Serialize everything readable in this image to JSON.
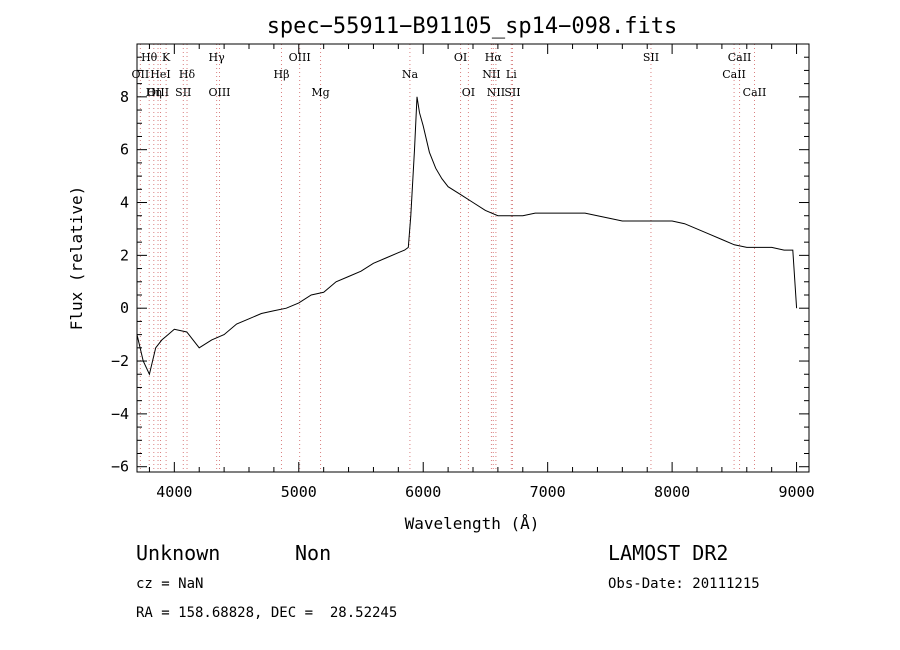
{
  "chart_data": {
    "type": "line",
    "title": "spec−55911−B91105_sp14−098.fits",
    "xlabel": "Wavelength (Å)",
    "ylabel": "Flux (relative)",
    "xlim": [
      3700,
      9100
    ],
    "ylim": [
      -6.2,
      10.0
    ],
    "x_ticks": [
      4000,
      5000,
      6000,
      7000,
      8000,
      9000
    ],
    "y_ticks": [
      -6,
      -4,
      -2,
      0,
      2,
      4,
      6,
      8
    ],
    "y_tick_labels": [
      "−6",
      "−4",
      "−2",
      "0",
      "2",
      "4",
      "6",
      "8"
    ],
    "grid": false,
    "line_color": "#000000",
    "marker_line_color": "#d98080",
    "series": [
      {
        "x": [
          3700,
          3750,
          3800,
          3850,
          3900,
          3950,
          4000,
          4100,
          4200,
          4300,
          4400,
          4500,
          4600,
          4700,
          4800,
          4900,
          5000,
          5100,
          5200,
          5300,
          5400,
          5500,
          5600,
          5700,
          5800,
          5850,
          5880,
          5900,
          5930,
          5950,
          5970,
          6000,
          6050,
          6100,
          6150,
          6200,
          6300,
          6400,
          6500,
          6600,
          6700,
          6800,
          6900,
          7000,
          7100,
          7200,
          7300,
          7400,
          7500,
          7600,
          7700,
          7800,
          7900,
          8000,
          8100,
          8200,
          8300,
          8400,
          8500,
          8600,
          8700,
          8800,
          8900,
          8970,
          9000
        ],
        "y": [
          -1.0,
          -2.0,
          -2.5,
          -1.5,
          -1.2,
          -1.0,
          -0.8,
          -0.9,
          -1.5,
          -1.2,
          -1.0,
          -0.6,
          -0.4,
          -0.2,
          -0.1,
          0.0,
          0.2,
          0.5,
          0.6,
          1.0,
          1.2,
          1.4,
          1.7,
          1.9,
          2.1,
          2.2,
          2.3,
          3.5,
          6.0,
          8.0,
          7.4,
          6.9,
          5.9,
          5.3,
          4.9,
          4.6,
          4.3,
          4.0,
          3.7,
          3.5,
          3.5,
          3.5,
          3.6,
          3.6,
          3.6,
          3.6,
          3.6,
          3.5,
          3.4,
          3.3,
          3.3,
          3.3,
          3.3,
          3.3,
          3.2,
          3.0,
          2.8,
          2.6,
          2.4,
          2.3,
          2.3,
          2.3,
          2.2,
          2.2,
          0.0
        ]
      }
    ],
    "line_markers": [
      {
        "name": "Hθ",
        "wavelength": 3798,
        "row": 0
      },
      {
        "name": "OII",
        "wavelength": 3727,
        "row": 1
      },
      {
        "name": "Hη",
        "wavelength": 3835,
        "row": 2
      },
      {
        "name": "OIII",
        "wavelength": 3869,
        "row": 2
      },
      {
        "name": "K",
        "wavelength": 3934,
        "row": 0
      },
      {
        "name": "HeI",
        "wavelength": 3889,
        "row": 1
      },
      {
        "name": "Hδ",
        "wavelength": 4102,
        "row": 1
      },
      {
        "name": "SII",
        "wavelength": 4072,
        "row": 2
      },
      {
        "name": "Hγ",
        "wavelength": 4340,
        "row": 0
      },
      {
        "name": "OIII",
        "wavelength": 4363,
        "row": 2
      },
      {
        "name": "Hβ",
        "wavelength": 4861,
        "row": 1
      },
      {
        "name": "OIII",
        "wavelength": 5007,
        "row": 0
      },
      {
        "name": "Mg",
        "wavelength": 5175,
        "row": 2
      },
      {
        "name": "Na",
        "wavelength": 5893,
        "row": 1
      },
      {
        "name": "OI",
        "wavelength": 6300,
        "row": 0
      },
      {
        "name": "OI",
        "wavelength": 6363,
        "row": 2
      },
      {
        "name": "Hα",
        "wavelength": 6563,
        "row": 0
      },
      {
        "name": "NII",
        "wavelength": 6548,
        "row": 1
      },
      {
        "name": "NII",
        "wavelength": 6584,
        "row": 2
      },
      {
        "name": "Li",
        "wavelength": 6708,
        "row": 1
      },
      {
        "name": "SII",
        "wavelength": 6717,
        "row": 2
      },
      {
        "name": "SII",
        "wavelength": 7830,
        "row": 0
      },
      {
        "name": "CaII",
        "wavelength": 8498,
        "row": 1
      },
      {
        "name": "CaII",
        "wavelength": 8542,
        "row": 0
      },
      {
        "name": "CaII",
        "wavelength": 8662,
        "row": 2
      }
    ]
  },
  "info": {
    "class": "Unknown",
    "subclass": "Non",
    "survey": "LAMOST DR2",
    "cz": "cz = NaN",
    "obs_date": "Obs-Date: 20111215",
    "coords": "RA = 158.68828, DEC =  28.52245"
  }
}
